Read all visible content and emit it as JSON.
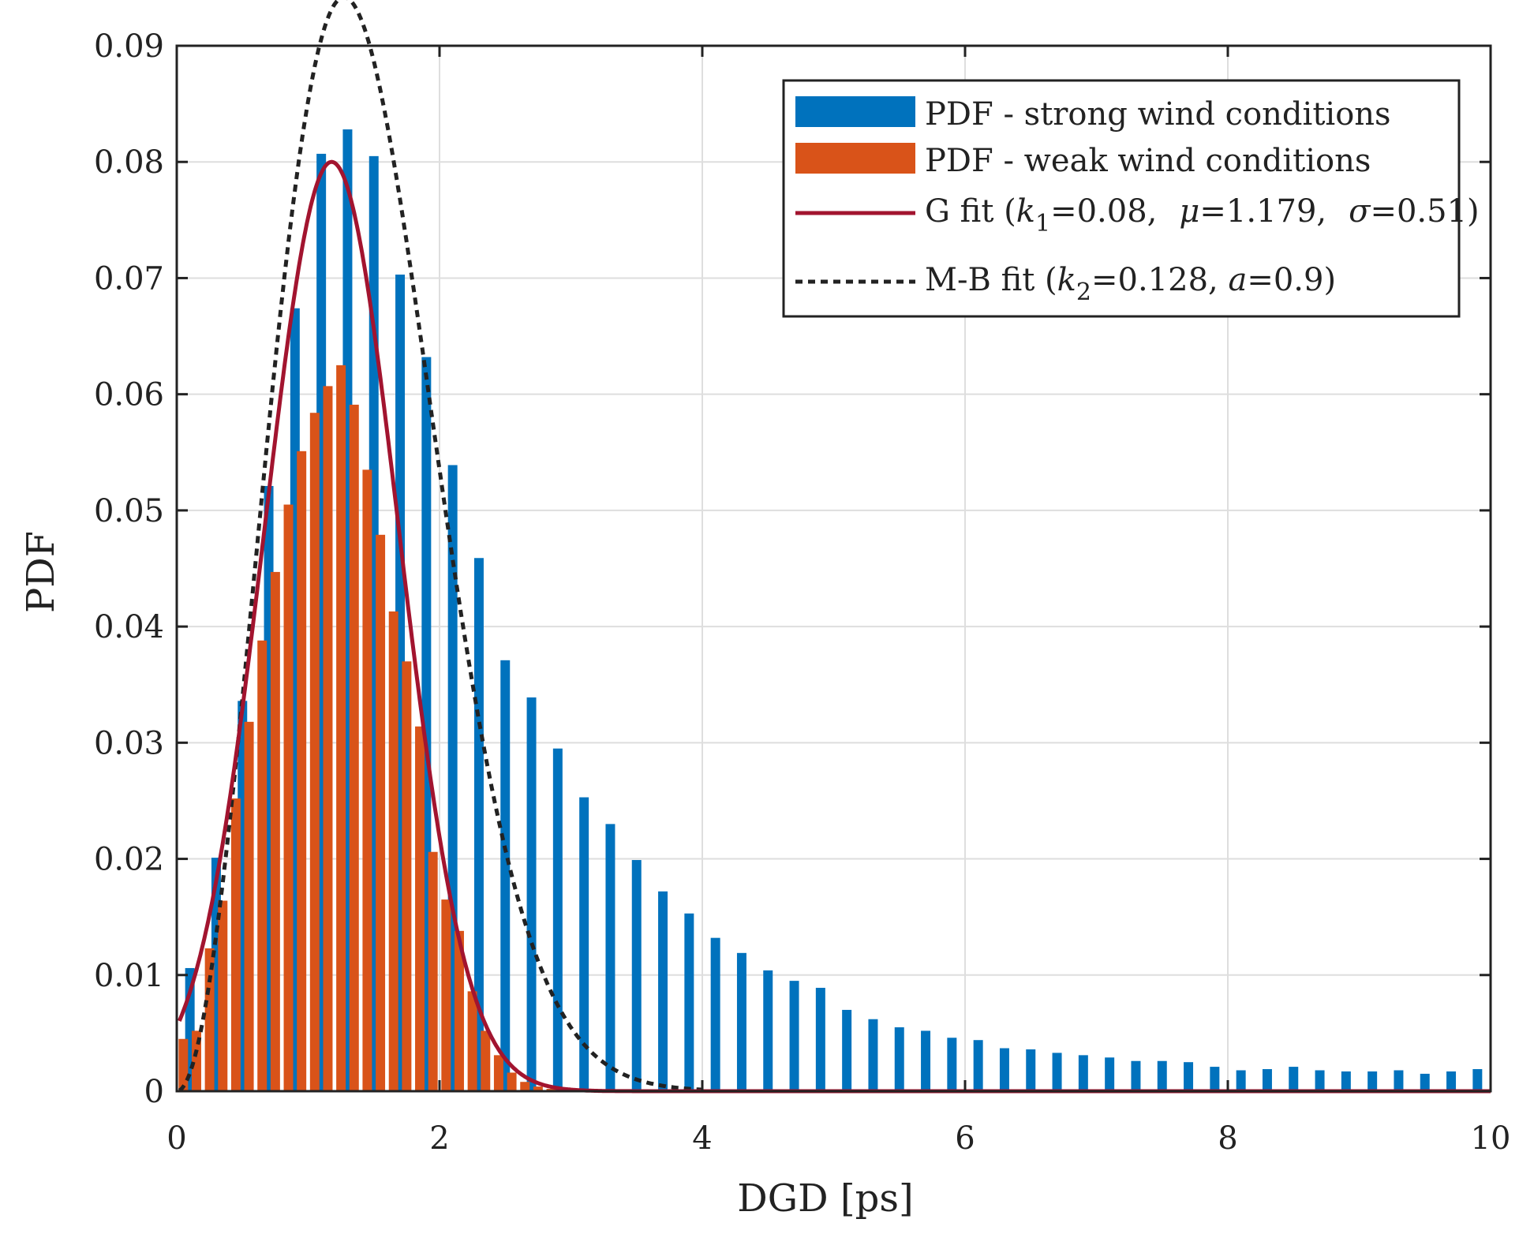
{
  "chart_data": {
    "type": "bar",
    "title": "",
    "xlabel": "DGD [ps]",
    "ylabel": "PDF",
    "xlim": [
      0,
      10
    ],
    "ylim": [
      0,
      0.09
    ],
    "grid": true,
    "legend_position": "top-right",
    "x_ticks": [
      "0",
      "2",
      "4",
      "6",
      "8",
      "10"
    ],
    "y_ticks": [
      "0",
      "0.01",
      "0.02",
      "0.03",
      "0.04",
      "0.05",
      "0.06",
      "0.07",
      "0.08",
      "0.09"
    ],
    "colors": {
      "strong": "#0072BD",
      "weak": "#D95319",
      "g_fit": "#A2142F",
      "mb_fit": "#222222",
      "grid": "#dedede",
      "axis": "#222222"
    },
    "series": [
      {
        "name": "PDF - strong wind conditions",
        "kind": "bar",
        "bin_width": 0.2,
        "x": [
          0.1,
          0.3,
          0.5,
          0.7,
          0.9,
          1.1,
          1.3,
          1.5,
          1.7,
          1.9,
          2.1,
          2.3,
          2.5,
          2.7,
          2.9,
          3.1,
          3.3,
          3.5,
          3.7,
          3.9,
          4.1,
          4.3,
          4.5,
          4.7,
          4.9,
          5.1,
          5.3,
          5.5,
          5.7,
          5.9,
          6.1,
          6.3,
          6.5,
          6.7,
          6.9,
          7.1,
          7.3,
          7.5,
          7.7,
          7.9,
          8.1,
          8.3,
          8.5,
          8.7,
          8.9,
          9.1,
          9.3,
          9.5,
          9.7,
          9.9
        ],
        "values": [
          0.0106,
          0.0201,
          0.0336,
          0.0521,
          0.0674,
          0.0807,
          0.0828,
          0.0805,
          0.0703,
          0.0632,
          0.0539,
          0.0459,
          0.0371,
          0.0339,
          0.0295,
          0.0253,
          0.023,
          0.0199,
          0.0172,
          0.0153,
          0.0132,
          0.0119,
          0.0104,
          0.0095,
          0.0089,
          0.007,
          0.0062,
          0.0055,
          0.0052,
          0.0046,
          0.0044,
          0.0037,
          0.0036,
          0.0033,
          0.0031,
          0.0029,
          0.0026,
          0.0026,
          0.0025,
          0.0021,
          0.0018,
          0.0019,
          0.0021,
          0.0018,
          0.0017,
          0.0017,
          0.0018,
          0.0015,
          0.0017,
          0.0019
        ]
      },
      {
        "name": "PDF - weak wind conditions",
        "kind": "bar",
        "bin_width": 0.1,
        "x": [
          0.05,
          0.15,
          0.25,
          0.35,
          0.45,
          0.55,
          0.65,
          0.75,
          0.85,
          0.95,
          1.05,
          1.15,
          1.25,
          1.35,
          1.45,
          1.55,
          1.65,
          1.75,
          1.85,
          1.95,
          2.05,
          2.15,
          2.25,
          2.35,
          2.45,
          2.55,
          2.65,
          2.75,
          2.85,
          2.95
        ],
        "values": [
          0.0045,
          0.0052,
          0.0123,
          0.0164,
          0.0252,
          0.0318,
          0.0388,
          0.0447,
          0.0505,
          0.0551,
          0.0584,
          0.0607,
          0.0625,
          0.0591,
          0.0535,
          0.0479,
          0.0413,
          0.037,
          0.0314,
          0.0206,
          0.0165,
          0.0138,
          0.0086,
          0.0052,
          0.0031,
          0.0016,
          0.0008,
          0.0004,
          0.0002,
          0.0001
        ]
      },
      {
        "name": "G fit (k",
        "kind": "line",
        "k": 0.08,
        "mu": 1.179,
        "sigma": 0.51
      },
      {
        "name": "M-B fit (k",
        "kind": "line",
        "k": 0.128,
        "a": 0.9
      }
    ],
    "legend": {
      "strong": "PDF - strong wind conditions",
      "weak": "PDF - weak wind conditions",
      "g_fit": {
        "p1": "G fit (",
        "k": "k",
        "k_sub": "1",
        "p2": "=0.08,",
        "mu": "μ",
        "p3": "=1.179,",
        "sigma": "σ",
        "p4": "=0.51)"
      },
      "mb_fit": {
        "p1": "M-B fit (",
        "k": "k",
        "k_sub": "2",
        "p2": "=0.128, ",
        "a": "a",
        "p3": "=0.9)"
      }
    }
  }
}
